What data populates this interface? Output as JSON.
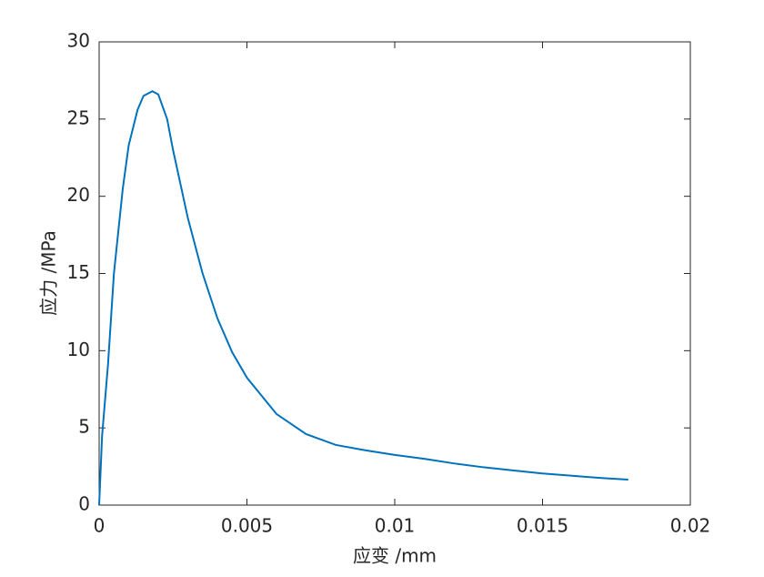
{
  "chart_data": {
    "type": "line",
    "x_label": "应变 /mm",
    "y_label": "应力 /MPa",
    "xlim": [
      0,
      0.02
    ],
    "xticks": [
      0,
      0.005,
      0.01,
      0.015,
      0.02
    ],
    "ylim": [
      0,
      30
    ],
    "yticks": [
      0,
      5,
      10,
      15,
      20,
      25,
      30
    ],
    "box": true,
    "series": [
      {
        "name": null,
        "color": "#0072BD",
        "x": [
          0,
          0.0001,
          0.0003,
          0.0005,
          0.0008,
          0.001,
          0.0013,
          0.0015,
          0.0018,
          0.002,
          0.0023,
          0.0025,
          0.003,
          0.0035,
          0.004,
          0.0045,
          0.005,
          0.006,
          0.007,
          0.008,
          0.009,
          0.01,
          0.011,
          0.012,
          0.013,
          0.014,
          0.015,
          0.016,
          0.017,
          0.0179
        ],
        "values": [
          0,
          4.5,
          9.1,
          15,
          20.5,
          23.3,
          25.6,
          26.5,
          26.8,
          26.6,
          25,
          23,
          18.6,
          15,
          12.1,
          9.9,
          8.25,
          5.9,
          4.6,
          3.9,
          3.55,
          3.25,
          3.0,
          2.7,
          2.45,
          2.25,
          2.05,
          1.9,
          1.75,
          1.65
        ]
      }
    ]
  }
}
